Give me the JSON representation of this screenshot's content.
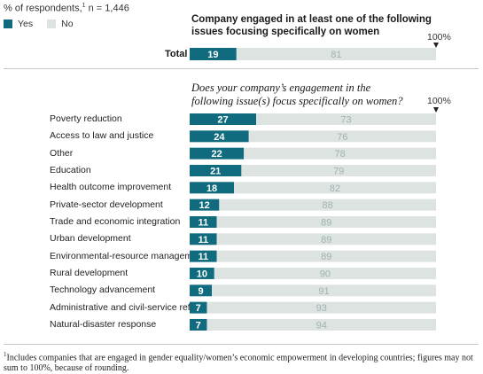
{
  "header": {
    "respondents_prefix": "% of respondents,",
    "respondents_sup": "1",
    "respondents_suffix": " n = 1,446"
  },
  "legend": {
    "yes_label": "Yes",
    "no_label": "No"
  },
  "colors": {
    "yes": "#0f6b7d",
    "no": "#dde3e1",
    "no_text": "#9fb2b2"
  },
  "chart_data": [
    {
      "type": "bar",
      "title": "Company engaged in at least one of the following issues focusing specifically on women",
      "percent_marker": "100%",
      "categories": [
        "Total"
      ],
      "series": [
        {
          "name": "Yes",
          "values": [
            19
          ]
        },
        {
          "name": "No",
          "values": [
            81
          ]
        }
      ],
      "xlim": [
        0,
        100
      ]
    },
    {
      "type": "bar",
      "title": "Does your company’s engagement in the following issue(s) focus specifically on women?",
      "percent_marker": "100%",
      "categories": [
        "Poverty reduction",
        "Access to law and justice",
        "Other",
        "Education",
        "Health outcome improvement",
        "Private-sector development",
        "Trade and economic integration",
        "Urban development",
        "Environmental-resource management",
        "Rural development",
        "Technology advancement",
        "Administrative and civil-service reform",
        "Natural-disaster response"
      ],
      "series": [
        {
          "name": "Yes",
          "values": [
            27,
            24,
            22,
            21,
            18,
            12,
            11,
            11,
            11,
            10,
            9,
            7,
            7
          ]
        },
        {
          "name": "No",
          "values": [
            73,
            76,
            78,
            79,
            82,
            88,
            89,
            89,
            89,
            90,
            91,
            93,
            94
          ]
        }
      ],
      "xlim": [
        0,
        100
      ]
    }
  ],
  "footnote": {
    "sup": "1",
    "text": "Includes companies that are engaged in gender equality/women’s economic empowerment in developing countries; figures may not sum to 100%, because of rounding."
  }
}
